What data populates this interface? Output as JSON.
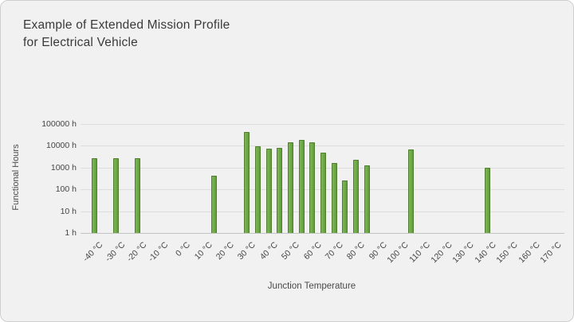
{
  "slide": {
    "title_line1": "Example of Extended Mission Profile",
    "title_line2": "for Electrical Vehicle"
  },
  "chart_data": {
    "type": "bar",
    "title": "Example of Extended Mission Profile for Electrical Vehicle",
    "xlabel": "Junction Temperature",
    "ylabel": "Functional Hours",
    "y_scale": "log",
    "ylim": [
      1,
      100000
    ],
    "y_ticks": [
      1,
      10,
      100,
      1000,
      10000,
      100000
    ],
    "y_tick_labels": [
      "1 h",
      "10 h",
      "100 h",
      "1000 h",
      "10000 h",
      "100000 h"
    ],
    "x_tick_temps": [
      -40,
      -30,
      -20,
      -10,
      0,
      10,
      20,
      30,
      40,
      50,
      60,
      70,
      80,
      90,
      100,
      110,
      120,
      130,
      140,
      150,
      160,
      170
    ],
    "x_tick_labels": [
      "-40 °C",
      "-30 °C",
      "-20 °C",
      "-10 °C",
      "0 °C",
      "10 °C",
      "20 °C",
      "30 °C",
      "40 °C",
      "50 °C",
      "60 °C",
      "70 °C",
      "80 °C",
      "90 °C",
      "100 °C",
      "110 °C",
      "120 °C",
      "130 °C",
      "140 °C",
      "150 °C",
      "160 °C",
      "170 °C"
    ],
    "grid": true,
    "legend": false,
    "bar_color": "#70AD47",
    "bar_border_color": "#537D33",
    "background_color": "#F1F1F2",
    "points": [
      {
        "temp": -40,
        "hours": 2800
      },
      {
        "temp": -30,
        "hours": 2800
      },
      {
        "temp": -20,
        "hours": 2800
      },
      {
        "temp": 15,
        "hours": 430
      },
      {
        "temp": 30,
        "hours": 45000
      },
      {
        "temp": 35,
        "hours": 9500
      },
      {
        "temp": 40,
        "hours": 7500
      },
      {
        "temp": 45,
        "hours": 8200
      },
      {
        "temp": 50,
        "hours": 14000
      },
      {
        "temp": 55,
        "hours": 18000
      },
      {
        "temp": 60,
        "hours": 15000
      },
      {
        "temp": 65,
        "hours": 4800
      },
      {
        "temp": 70,
        "hours": 1600
      },
      {
        "temp": 75,
        "hours": 260
      },
      {
        "temp": 80,
        "hours": 2200
      },
      {
        "temp": 85,
        "hours": 1300
      },
      {
        "temp": 105,
        "hours": 7000
      },
      {
        "temp": 140,
        "hours": 1000
      }
    ]
  }
}
